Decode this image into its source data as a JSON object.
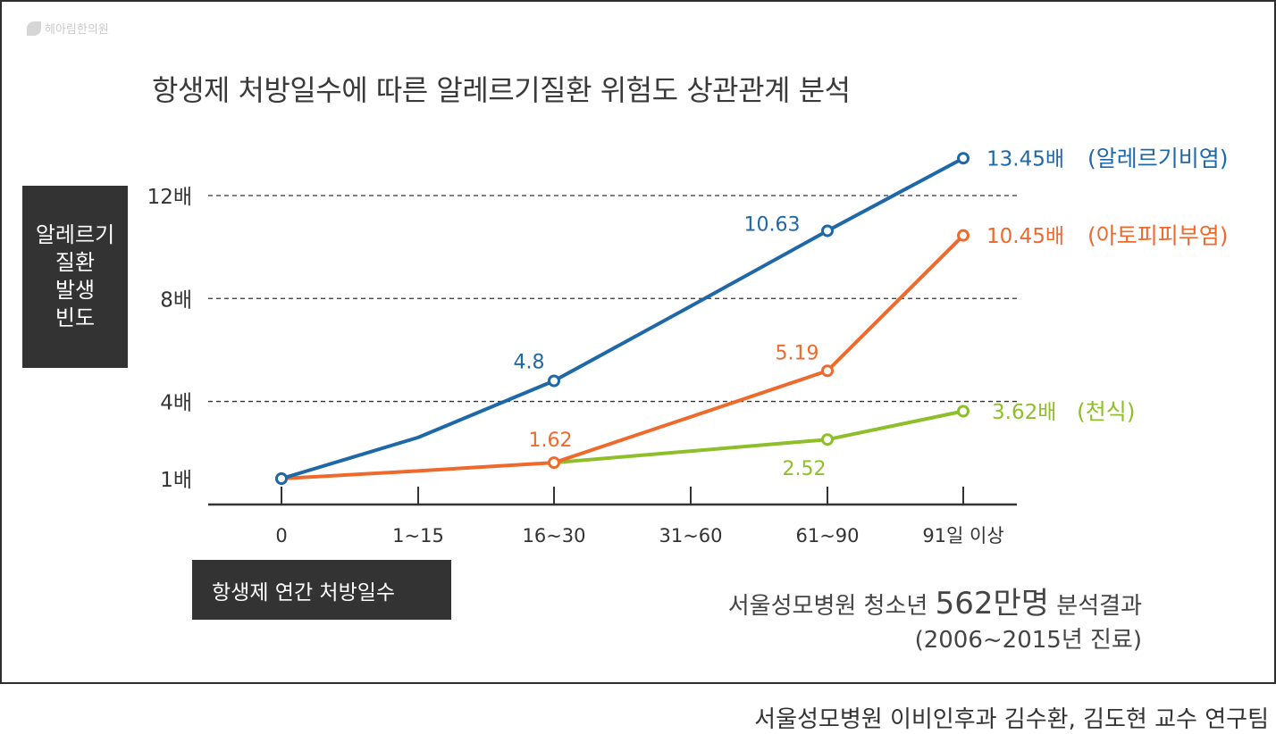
{
  "watermark": "헤아림한의원",
  "title": "항생제 처방일수에 따른 알레르기질환 위험도 상관관계 분석",
  "y_axis_box": [
    "알레르기",
    "질환",
    "발생",
    "빈도"
  ],
  "x_axis_box": "항생제 연간 처방일수",
  "source_line1": {
    "prefix": "서울성모병원 청소년 ",
    "highlight": "562만명",
    "suffix": " 분석결과"
  },
  "source_line2": "(2006~2015년 진료)",
  "credit": "서울성모병원 이비인후과 김수환, 김도현 교수 연구팀",
  "colors": {
    "blue": "#1f68a8",
    "orange": "#ee6a2c",
    "green": "#8ebf2a",
    "text": "#333333"
  },
  "chart_data": {
    "type": "line",
    "categories": [
      "0",
      "1~15",
      "16~30",
      "31~60",
      "61~90",
      "91일 이상"
    ],
    "yticks": [
      {
        "value": 1,
        "label": "1배"
      },
      {
        "value": 4,
        "label": "4배"
      },
      {
        "value": 8,
        "label": "8배"
      },
      {
        "value": 12,
        "label": "12배"
      }
    ],
    "ylim": [
      0,
      13.5
    ],
    "grid": "dashed at 4, 8, 12",
    "series": [
      {
        "name": "(알레르기비염)",
        "color": "#1f68a8",
        "x": [
          0,
          1,
          2,
          3,
          4,
          5
        ],
        "values": [
          1,
          2.6,
          4.8,
          7.7,
          10.63,
          13.45
        ],
        "markers": [
          0,
          2,
          4,
          5
        ],
        "labels": [
          {
            "i": 2,
            "text": "4.8"
          },
          {
            "i": 4,
            "text": "10.63"
          }
        ],
        "end_label": "13.45배"
      },
      {
        "name": "(아토피피부염)",
        "color": "#ee6a2c",
        "x": [
          0,
          1,
          2,
          3,
          4,
          5
        ],
        "values": [
          1,
          1.3,
          1.62,
          3.4,
          5.19,
          10.45
        ],
        "markers": [
          0,
          2,
          4,
          5
        ],
        "labels": [
          {
            "i": 2,
            "text": "1.62"
          },
          {
            "i": 4,
            "text": "5.19"
          }
        ],
        "end_label": "10.45배"
      },
      {
        "name": "(천식)",
        "color": "#8ebf2a",
        "x": [
          2,
          4,
          5
        ],
        "values": [
          1.62,
          2.52,
          3.62
        ],
        "markers": [
          1,
          2
        ],
        "labels": [
          {
            "i": 1,
            "text": "2.52"
          }
        ],
        "end_label": "3.62배"
      }
    ]
  }
}
